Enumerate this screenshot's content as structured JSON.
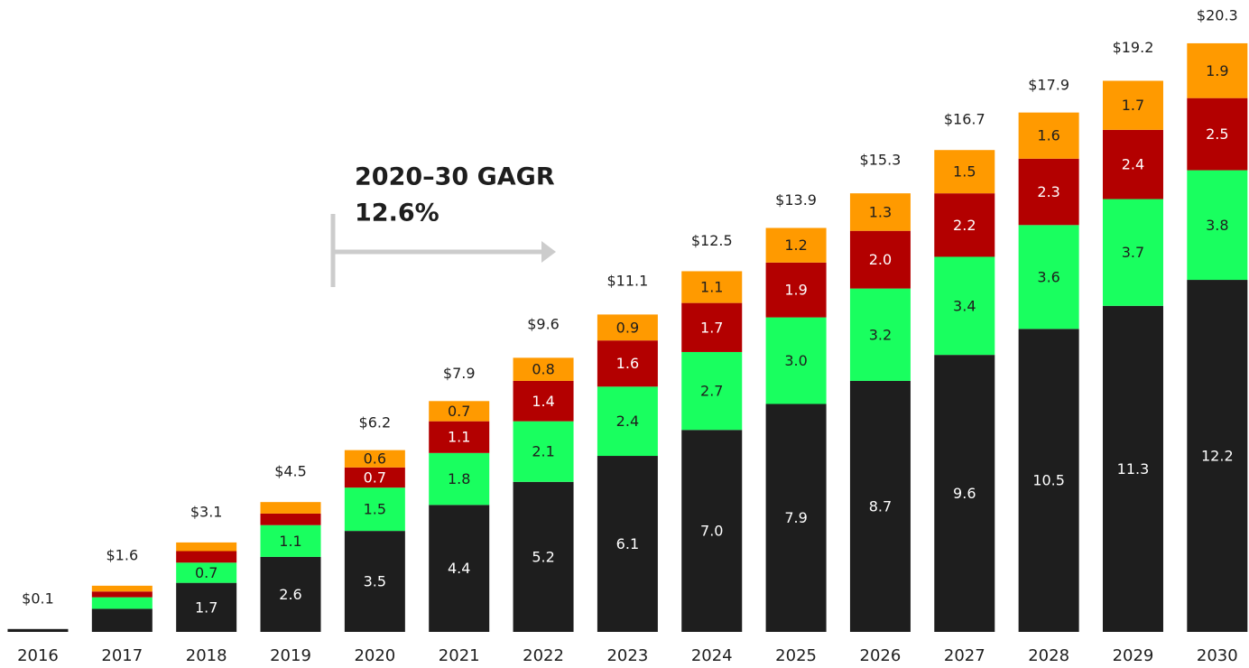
{
  "chart_data": {
    "type": "stacked_bar",
    "annotation": [
      "2020–30 GAGR",
      "12.6%"
    ],
    "categories": [
      "2016",
      "2017",
      "2018",
      "2019",
      "2020",
      "2021",
      "2022",
      "2023",
      "2024",
      "2025",
      "2026",
      "2027",
      "2028",
      "2029",
      "2030"
    ],
    "series": [
      {
        "color": "#1e1e1e",
        "label_color": "#ffffff",
        "values": [
          0.1,
          0.8,
          1.7,
          2.6,
          3.5,
          4.4,
          5.2,
          6.1,
          7.0,
          7.9,
          8.7,
          9.6,
          10.5,
          11.3,
          12.2
        ],
        "value_labels": [
          null,
          null,
          "1.7",
          "2.6",
          "3.5",
          "4.4",
          "5.2",
          "6.1",
          "7.0",
          "7.9",
          "8.7",
          "9.6",
          "10.5",
          "11.3",
          "12.2"
        ]
      },
      {
        "color": "#19ff5f",
        "label_color": "#1e1e1e",
        "values": [
          0,
          0.4,
          0.7,
          1.1,
          1.5,
          1.8,
          2.1,
          2.4,
          2.7,
          3.0,
          3.2,
          3.4,
          3.6,
          3.7,
          3.8
        ],
        "value_labels": [
          null,
          null,
          "0.7",
          "1.1",
          "1.5",
          "1.8",
          "2.1",
          "2.4",
          "2.7",
          "3.0",
          "3.2",
          "3.4",
          "3.6",
          "3.7",
          "3.8"
        ]
      },
      {
        "color": "#b30000",
        "label_color": "#ffffff",
        "values": [
          0,
          0.2,
          0.4,
          0.4,
          0.7,
          1.1,
          1.4,
          1.6,
          1.7,
          1.9,
          2.0,
          2.2,
          2.3,
          2.4,
          2.5
        ],
        "value_labels": [
          null,
          null,
          null,
          null,
          "0.7",
          "1.1",
          "1.4",
          "1.6",
          "1.7",
          "1.9",
          "2.0",
          "2.2",
          "2.3",
          "2.4",
          "2.5"
        ]
      },
      {
        "color": "#ff9a00",
        "label_color": "#1e1e1e",
        "values": [
          0,
          0.2,
          0.3,
          0.4,
          0.6,
          0.7,
          0.8,
          0.9,
          1.1,
          1.2,
          1.3,
          1.5,
          1.6,
          1.7,
          1.9
        ],
        "value_labels": [
          null,
          null,
          null,
          null,
          "0.6",
          "0.7",
          "0.8",
          "0.9",
          "1.1",
          "1.2",
          "1.3",
          "1.5",
          "1.6",
          "1.7",
          "1.9"
        ]
      }
    ],
    "totals": [
      0.1,
      1.6,
      3.1,
      4.5,
      6.2,
      7.9,
      9.6,
      11.1,
      12.5,
      13.9,
      15.3,
      16.7,
      17.9,
      19.2,
      20.3
    ],
    "total_labels": [
      "$0.1",
      "$1.6",
      "$3.1",
      "$4.5",
      "$6.2",
      "$7.9",
      "$9.6",
      "$11.1",
      "$12.5",
      "$13.9",
      "$15.3",
      "$16.7",
      "$17.9",
      "$19.2",
      "$20.3"
    ],
    "ylim": [
      0,
      21.9
    ]
  }
}
